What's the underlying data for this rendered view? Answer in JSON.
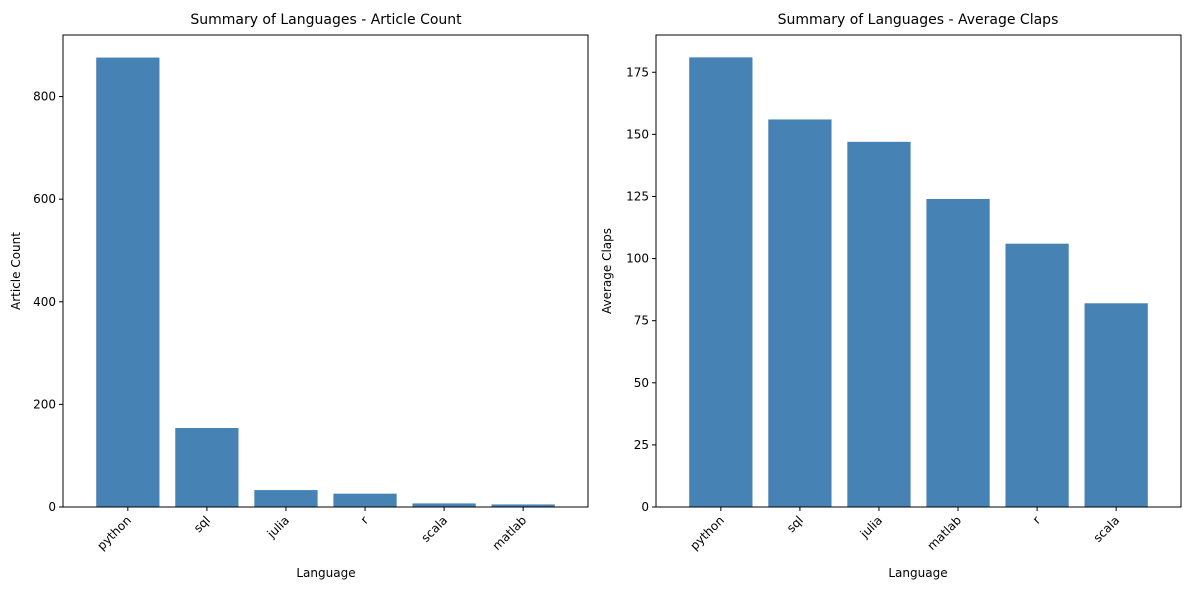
{
  "chart_data": [
    {
      "type": "bar",
      "title": "Summary of Languages - Article Count",
      "xlabel": "Language",
      "ylabel": "Article Count",
      "categories": [
        "python",
        "sql",
        "julia",
        "r",
        "scala",
        "matlab"
      ],
      "values": [
        876,
        154,
        33,
        26,
        7,
        5
      ],
      "yticks": [
        0,
        200,
        400,
        600,
        800
      ],
      "ylim": [
        0,
        920
      ],
      "grid": false,
      "color": "#4682b4"
    },
    {
      "type": "bar",
      "title": "Summary of Languages - Average Claps",
      "xlabel": "Language",
      "ylabel": "Average Claps",
      "categories": [
        "python",
        "sql",
        "julia",
        "matlab",
        "r",
        "scala"
      ],
      "values": [
        181,
        156,
        147,
        124,
        106,
        82
      ],
      "yticks": [
        0,
        25,
        50,
        75,
        100,
        125,
        150,
        175
      ],
      "ylim": [
        0,
        190
      ],
      "grid": false,
      "color": "#4682b4"
    }
  ]
}
